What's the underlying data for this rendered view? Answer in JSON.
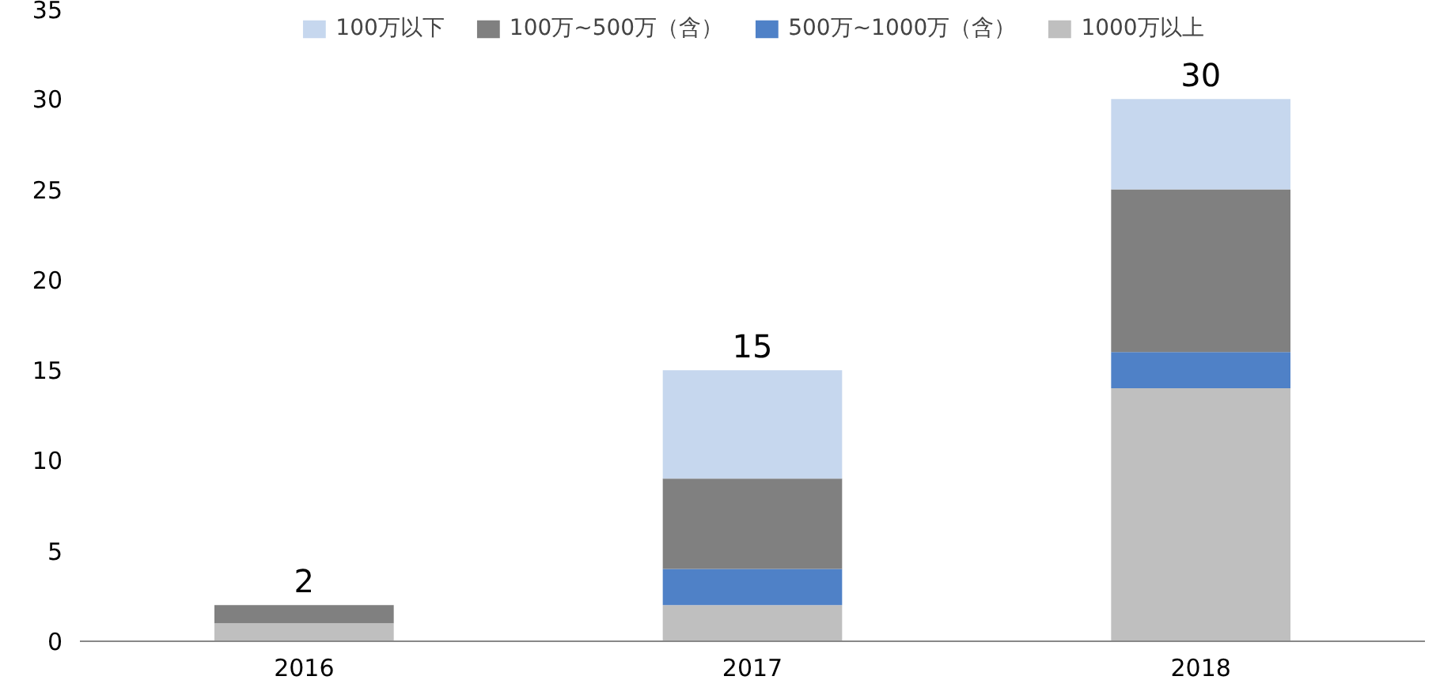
{
  "chart_data": {
    "type": "bar",
    "stacked": true,
    "categories": [
      "2016",
      "2017",
      "2018"
    ],
    "series": [
      {
        "name": "1000万以上",
        "color": "#bfbfbf",
        "values": [
          1,
          2,
          14
        ]
      },
      {
        "name": "500万~1000万（含）",
        "color": "#4f81c7",
        "values": [
          0,
          2,
          2
        ]
      },
      {
        "name": "100万~500万（含）",
        "color": "#808080",
        "values": [
          1,
          5,
          9
        ]
      },
      {
        "name": "100万以下",
        "color": "#c6d7ee",
        "values": [
          0,
          6,
          5
        ]
      }
    ],
    "totals": [
      "2",
      "15",
      "30"
    ],
    "ylim": [
      0,
      35
    ],
    "yticks": [
      0,
      5,
      10,
      15,
      20,
      25,
      30,
      35
    ],
    "grid": false,
    "legend": "top"
  }
}
